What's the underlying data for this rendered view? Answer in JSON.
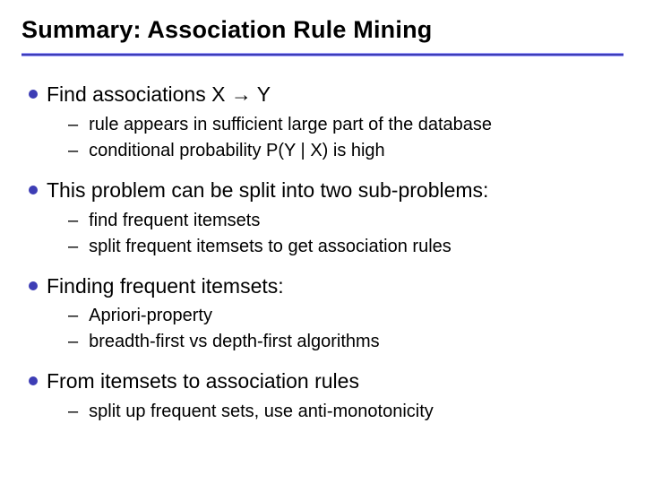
{
  "title": "Summary: Association Rule Mining",
  "colors": {
    "bullet": "#3d3db5",
    "ruleOuter": "#a0a0ff",
    "ruleInner": "#3d3db5",
    "text": "#000000",
    "background": "#ffffff"
  },
  "typography": {
    "title_fontsize": 27,
    "title_weight": "bold",
    "top_fontsize": 23,
    "sub_fontsize": 20,
    "font_family": "Arial"
  },
  "bullets": [
    {
      "text": "Find associations X → Y",
      "subs": [
        "rule appears in sufficient large part of the database",
        "conditional probability P(Y | X) is high"
      ]
    },
    {
      "text": "This problem can be split into two sub-problems:",
      "subs": [
        "find frequent itemsets",
        "split frequent itemsets to get association rules"
      ]
    },
    {
      "text": "Finding frequent itemsets:",
      "subs": [
        "Apriori-property",
        "breadth-first vs depth-first algorithms"
      ]
    },
    {
      "text": "From itemsets to association rules",
      "subs": [
        "split up frequent sets, use anti-monotonicity"
      ]
    }
  ]
}
